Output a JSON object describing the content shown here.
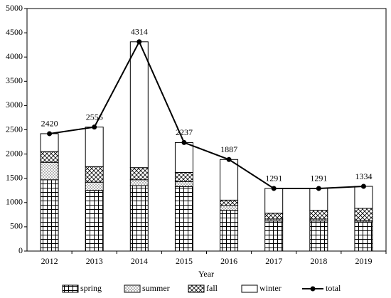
{
  "chart_data": {
    "type": "bar",
    "stacked": true,
    "x_label": "Year",
    "categories": [
      "2012",
      "2013",
      "2014",
      "2015",
      "2016",
      "2017",
      "2018",
      "2019"
    ],
    "series": [
      {
        "name": "spring",
        "color": "#000000",
        "pattern": "grid",
        "values": [
          1470,
          1250,
          1350,
          1330,
          840,
          620,
          620,
          600
        ]
      },
      {
        "name": "summer",
        "color": "#000000",
        "pattern": "dots",
        "values": [
          360,
          170,
          120,
          100,
          100,
          40,
          40,
          30
        ]
      },
      {
        "name": "fall",
        "color": "#000000",
        "pattern": "crosshatch",
        "values": [
          220,
          320,
          250,
          190,
          110,
          120,
          180,
          250
        ]
      },
      {
        "name": "winter",
        "color": "#000000",
        "pattern": "none",
        "values": [
          370,
          816,
          2594,
          617,
          837,
          511,
          451,
          454
        ]
      },
      {
        "name": "total",
        "type": "line",
        "color": "#000000",
        "values": [
          2420,
          2556,
          4314,
          2237,
          1887,
          1291,
          1291,
          1334
        ]
      }
    ],
    "ylim": [
      0,
      5000
    ],
    "yticks": [
      0,
      500,
      1000,
      1500,
      2000,
      2500,
      3000,
      3500,
      4000,
      4500,
      5000
    ],
    "legend": "bottom"
  }
}
